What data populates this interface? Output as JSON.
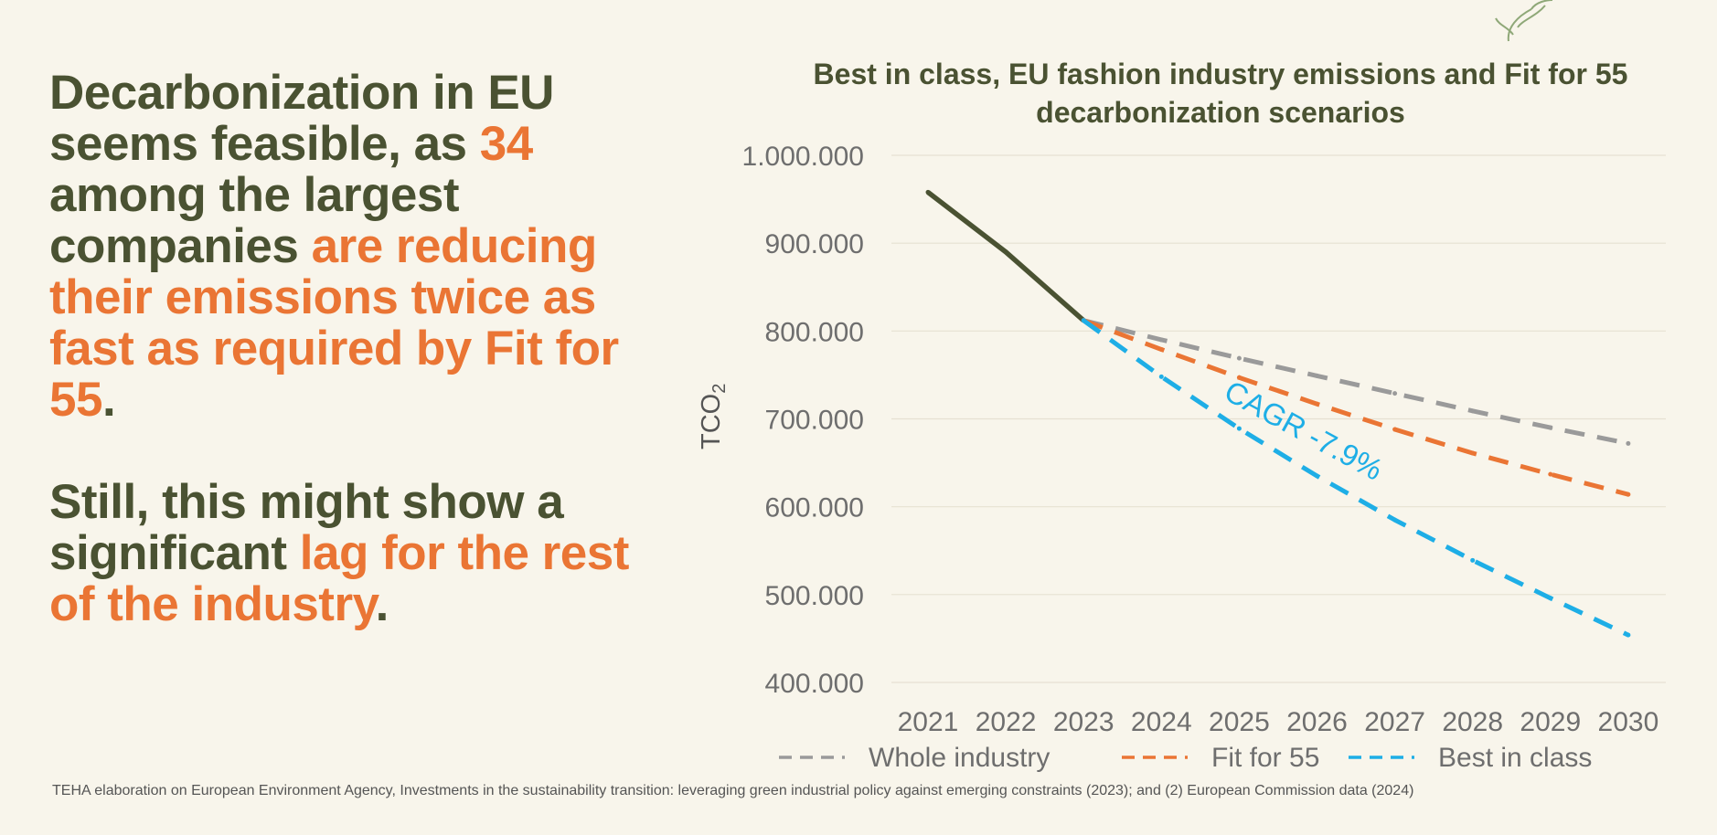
{
  "headline": {
    "p1": {
      "t1": "Decarbonization in EU seems feasible, as ",
      "t2": "34",
      "t3": " among the largest companies ",
      "t4": "are reducing their emissions twice as fast as required by Fit for 55",
      "t5": "."
    },
    "p2": {
      "t1": "Still, this might show a significant ",
      "t2": "lag for the rest of the industry",
      "t3": "."
    }
  },
  "source": "TEHA elaboration on European Environment Agency, Investments in the sustainability transition: leveraging green industrial policy against emerging constraints (2023); and (2) European Commission data (2024)",
  "colors": {
    "dark_green": "#4a5232",
    "orange": "#ea7534",
    "blue": "#1eaee6",
    "gray": "#9a9a9a",
    "background": "#f8f5eb"
  },
  "chart_data": {
    "type": "line",
    "title": "Best in class, EU fashion industry emissions and Fit for 55 decarbonization scenarios",
    "ylabel": "TCO",
    "ylabel_sub": "2",
    "xlabel": "",
    "ylim": [
      400000,
      1000000
    ],
    "yticks": [
      {
        "value": 1000000,
        "label": "1.000.000"
      },
      {
        "value": 900000,
        "label": "900.000"
      },
      {
        "value": 800000,
        "label": "800.000"
      },
      {
        "value": 700000,
        "label": "700.000"
      },
      {
        "value": 600000,
        "label": "600.000"
      },
      {
        "value": 500000,
        "label": "500.000"
      },
      {
        "value": 400000,
        "label": "400.000"
      }
    ],
    "categories": [
      "2021",
      "2022",
      "2023",
      "2024",
      "2025",
      "2026",
      "2027",
      "2028",
      "2029",
      "2030"
    ],
    "series": [
      {
        "name": "Historical",
        "legend": false,
        "color": "#4a5232",
        "dashed": false,
        "values": [
          958000,
          890000,
          812000,
          null,
          null,
          null,
          null,
          null,
          null,
          null
        ]
      },
      {
        "name": "Whole industry",
        "legend": true,
        "color": "#9a9a9a",
        "dashed": true,
        "values": [
          null,
          null,
          812000,
          790000,
          769000,
          749000,
          729000,
          709000,
          690000,
          672000
        ]
      },
      {
        "name": "Fit for 55",
        "legend": true,
        "color": "#ea7534",
        "dashed": true,
        "values": [
          null,
          null,
          812000,
          779000,
          747000,
          717000,
          688000,
          661000,
          637000,
          614000
        ]
      },
      {
        "name": "Best in class",
        "legend": true,
        "color": "#1eaee6",
        "dashed": true,
        "values": [
          null,
          null,
          812000,
          748000,
          689000,
          635000,
          585000,
          539000,
          496000,
          454000
        ]
      }
    ],
    "annotations": [
      {
        "text": "CAGR -7.9%",
        "series": "Best in class",
        "color": "#1eaee6"
      }
    ],
    "grid": true,
    "legend_position": "bottom"
  }
}
